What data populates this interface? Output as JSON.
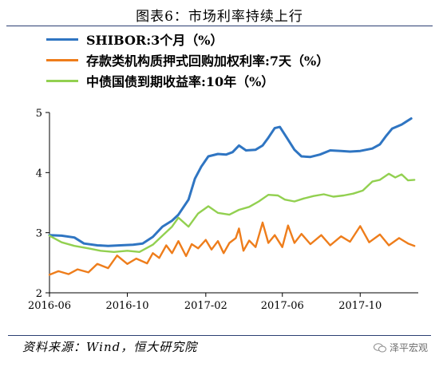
{
  "title": "图表6：市场利率持续上行",
  "source": "资料来源：Wind，恒大研究院",
  "watermark": "泽平宏观",
  "colors": {
    "shibor": "#2f75c2",
    "deposit": "#ee7d1b",
    "bond": "#92d050",
    "rule": "#2b3f73"
  },
  "chart_data": {
    "type": "line",
    "title": "市场利率持续上行",
    "xlabel": "",
    "ylabel": "",
    "xlim": [
      "2016-06-01",
      "2017-12-31"
    ],
    "ylim": [
      2,
      5
    ],
    "yticks": [
      2,
      3,
      4,
      5
    ],
    "xticks": [
      "2016-06",
      "2016-10",
      "2017-02",
      "2017-06",
      "2017-10"
    ],
    "grid": false,
    "legend_position": "top-left",
    "series": [
      {
        "name": "SHIBOR:3个月（%）",
        "key": "shibor",
        "points": [
          [
            "2016-06-01",
            2.96
          ],
          [
            "2016-06-20",
            2.95
          ],
          [
            "2016-07-10",
            2.92
          ],
          [
            "2016-07-25",
            2.82
          ],
          [
            "2016-08-15",
            2.79
          ],
          [
            "2016-09-01",
            2.78
          ],
          [
            "2016-09-20",
            2.79
          ],
          [
            "2016-10-10",
            2.8
          ],
          [
            "2016-10-25",
            2.82
          ],
          [
            "2016-11-10",
            2.93
          ],
          [
            "2016-11-25",
            3.1
          ],
          [
            "2016-12-10",
            3.2
          ],
          [
            "2016-12-20",
            3.3
          ],
          [
            "2017-01-05",
            3.55
          ],
          [
            "2017-01-15",
            3.9
          ],
          [
            "2017-01-25",
            4.1
          ],
          [
            "2017-02-05",
            4.27
          ],
          [
            "2017-02-20",
            4.31
          ],
          [
            "2017-03-05",
            4.3
          ],
          [
            "2017-03-15",
            4.34
          ],
          [
            "2017-03-25",
            4.45
          ],
          [
            "2017-04-05",
            4.37
          ],
          [
            "2017-04-20",
            4.38
          ],
          [
            "2017-05-01",
            4.45
          ],
          [
            "2017-05-10",
            4.58
          ],
          [
            "2017-05-20",
            4.74
          ],
          [
            "2017-05-28",
            4.76
          ],
          [
            "2017-06-08",
            4.58
          ],
          [
            "2017-06-20",
            4.38
          ],
          [
            "2017-07-01",
            4.27
          ],
          [
            "2017-07-15",
            4.26
          ],
          [
            "2017-07-30",
            4.3
          ],
          [
            "2017-08-15",
            4.37
          ],
          [
            "2017-09-01",
            4.36
          ],
          [
            "2017-09-15",
            4.35
          ],
          [
            "2017-10-01",
            4.36
          ],
          [
            "2017-10-20",
            4.4
          ],
          [
            "2017-11-01",
            4.47
          ],
          [
            "2017-11-10",
            4.6
          ],
          [
            "2017-11-20",
            4.73
          ],
          [
            "2017-12-05",
            4.8
          ],
          [
            "2017-12-20",
            4.9
          ]
        ]
      },
      {
        "name": "存款类机构质押式回购加权利率:7天（%）",
        "key": "deposit",
        "points": [
          [
            "2016-06-01",
            2.3
          ],
          [
            "2016-06-15",
            2.36
          ],
          [
            "2016-07-01",
            2.31
          ],
          [
            "2016-07-15",
            2.39
          ],
          [
            "2016-08-01",
            2.34
          ],
          [
            "2016-08-15",
            2.48
          ],
          [
            "2016-09-01",
            2.41
          ],
          [
            "2016-09-15",
            2.62
          ],
          [
            "2016-10-01",
            2.48
          ],
          [
            "2016-10-15",
            2.57
          ],
          [
            "2016-11-01",
            2.49
          ],
          [
            "2016-11-10",
            2.66
          ],
          [
            "2016-11-20",
            2.58
          ],
          [
            "2016-12-01",
            2.79
          ],
          [
            "2016-12-10",
            2.66
          ],
          [
            "2016-12-20",
            2.86
          ],
          [
            "2017-01-01",
            2.61
          ],
          [
            "2017-01-10",
            2.81
          ],
          [
            "2017-01-20",
            2.74
          ],
          [
            "2017-02-01",
            2.88
          ],
          [
            "2017-02-10",
            2.72
          ],
          [
            "2017-02-20",
            2.86
          ],
          [
            "2017-03-01",
            2.66
          ],
          [
            "2017-03-10",
            2.83
          ],
          [
            "2017-03-20",
            2.91
          ],
          [
            "2017-03-25",
            3.07
          ],
          [
            "2017-04-01",
            2.7
          ],
          [
            "2017-04-10",
            2.87
          ],
          [
            "2017-04-20",
            2.76
          ],
          [
            "2017-05-01",
            3.17
          ],
          [
            "2017-05-10",
            2.83
          ],
          [
            "2017-05-20",
            2.96
          ],
          [
            "2017-06-01",
            2.76
          ],
          [
            "2017-06-10",
            3.12
          ],
          [
            "2017-06-20",
            2.83
          ],
          [
            "2017-07-01",
            2.98
          ],
          [
            "2017-07-15",
            2.81
          ],
          [
            "2017-08-01",
            2.96
          ],
          [
            "2017-08-15",
            2.79
          ],
          [
            "2017-09-01",
            2.94
          ],
          [
            "2017-09-15",
            2.85
          ],
          [
            "2017-10-01",
            3.11
          ],
          [
            "2017-10-15",
            2.84
          ],
          [
            "2017-11-01",
            2.97
          ],
          [
            "2017-11-15",
            2.79
          ],
          [
            "2017-12-01",
            2.91
          ],
          [
            "2017-12-15",
            2.82
          ],
          [
            "2017-12-25",
            2.78
          ]
        ]
      },
      {
        "name": "中债国债到期收益率:10年（%）",
        "key": "bond",
        "points": [
          [
            "2016-06-01",
            2.95
          ],
          [
            "2016-06-20",
            2.84
          ],
          [
            "2016-07-10",
            2.78
          ],
          [
            "2016-08-01",
            2.74
          ],
          [
            "2016-08-20",
            2.7
          ],
          [
            "2016-09-10",
            2.68
          ],
          [
            "2016-10-01",
            2.7
          ],
          [
            "2016-10-20",
            2.68
          ],
          [
            "2016-11-10",
            2.8
          ],
          [
            "2016-11-25",
            2.95
          ],
          [
            "2016-12-10",
            3.1
          ],
          [
            "2016-12-20",
            3.25
          ],
          [
            "2017-01-05",
            3.1
          ],
          [
            "2017-01-20",
            3.32
          ],
          [
            "2017-02-05",
            3.44
          ],
          [
            "2017-02-20",
            3.33
          ],
          [
            "2017-03-10",
            3.3
          ],
          [
            "2017-03-25",
            3.38
          ],
          [
            "2017-04-10",
            3.43
          ],
          [
            "2017-04-25",
            3.52
          ],
          [
            "2017-05-10",
            3.63
          ],
          [
            "2017-05-25",
            3.62
          ],
          [
            "2017-06-05",
            3.55
          ],
          [
            "2017-06-20",
            3.52
          ],
          [
            "2017-07-05",
            3.57
          ],
          [
            "2017-07-20",
            3.61
          ],
          [
            "2017-08-05",
            3.64
          ],
          [
            "2017-08-20",
            3.6
          ],
          [
            "2017-09-05",
            3.62
          ],
          [
            "2017-09-20",
            3.65
          ],
          [
            "2017-10-05",
            3.7
          ],
          [
            "2017-10-20",
            3.85
          ],
          [
            "2017-11-01",
            3.88
          ],
          [
            "2017-11-15",
            3.98
          ],
          [
            "2017-11-25",
            3.92
          ],
          [
            "2017-12-05",
            3.97
          ],
          [
            "2017-12-15",
            3.87
          ],
          [
            "2017-12-25",
            3.88
          ]
        ]
      }
    ]
  }
}
